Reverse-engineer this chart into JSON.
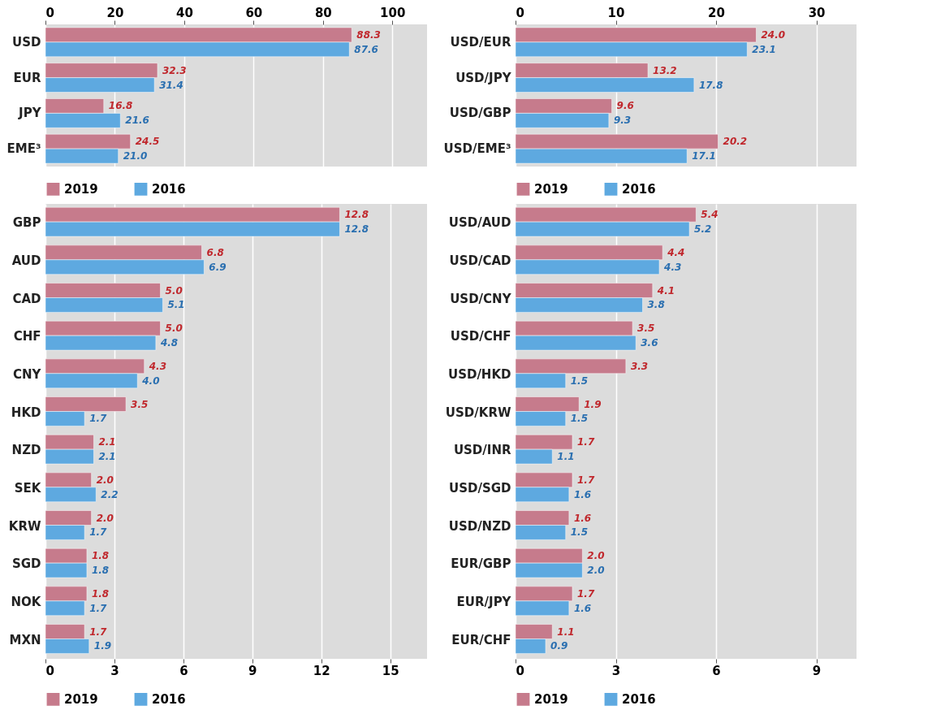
{
  "chart_data": [
    {
      "type": "bar",
      "orientation": "horizontal",
      "categories": [
        "USD",
        "EUR",
        "JPY",
        "EME³"
      ],
      "series": [
        {
          "name": "2019",
          "color": "#c67b8c",
          "values": [
            88.3,
            32.3,
            16.8,
            24.5
          ],
          "value_labels": [
            "88.3",
            "32.3",
            "16.8",
            "24.5"
          ]
        },
        {
          "name": "2016",
          "color": "#5ea9e0",
          "values": [
            87.6,
            31.4,
            21.6,
            21.0
          ],
          "value_labels": [
            "87.6",
            "31.4",
            "21.6",
            "21.0"
          ]
        }
      ],
      "xlim": [
        0,
        110
      ],
      "xticks": [
        0,
        20,
        40,
        60,
        80,
        100
      ],
      "grid": "x",
      "legend": "bottom"
    },
    {
      "type": "bar",
      "orientation": "horizontal",
      "categories": [
        "USD/EUR",
        "USD/JPY",
        "USD/GBP",
        "USD/EME³"
      ],
      "series": [
        {
          "name": "2019",
          "color": "#c67b8c",
          "values": [
            24.0,
            13.2,
            9.6,
            20.2
          ],
          "value_labels": [
            "24.0",
            "13.2",
            "9.6",
            "20.2"
          ]
        },
        {
          "name": "2016",
          "color": "#5ea9e0",
          "values": [
            23.1,
            17.8,
            9.3,
            17.1
          ],
          "value_labels": [
            "23.1",
            "17.8",
            "9.3",
            "17.1"
          ]
        }
      ],
      "xlim": [
        0,
        34
      ],
      "xticks": [
        0,
        10,
        20,
        30
      ],
      "grid": "x",
      "legend": "bottom"
    },
    {
      "type": "bar",
      "orientation": "horizontal",
      "categories": [
        "GBP",
        "AUD",
        "CAD",
        "CHF",
        "CNY",
        "HKD",
        "NZD",
        "SEK",
        "KRW",
        "SGD",
        "NOK",
        "MXN"
      ],
      "series": [
        {
          "name": "2019",
          "color": "#c67b8c",
          "values": [
            12.8,
            6.8,
            5.0,
            5.0,
            4.3,
            3.5,
            2.1,
            2.0,
            2.0,
            1.8,
            1.8,
            1.7
          ],
          "value_labels": [
            "12.8",
            "6.8",
            "5.0",
            "5.0",
            "4.3",
            "3.5",
            "2.1",
            "2.0",
            "2.0",
            "1.8",
            "1.8",
            "1.7"
          ]
        },
        {
          "name": "2016",
          "color": "#5ea9e0",
          "values": [
            12.8,
            6.9,
            5.1,
            4.8,
            4.0,
            1.7,
            2.1,
            2.2,
            1.7,
            1.8,
            1.7,
            1.9
          ],
          "value_labels": [
            "12.8",
            "6.9",
            "5.1",
            "4.8",
            "4.0",
            "1.7",
            "2.1",
            "2.2",
            "1.7",
            "1.8",
            "1.7",
            "1.9"
          ]
        }
      ],
      "xlim": [
        0,
        16.6
      ],
      "xticks": [
        0,
        3,
        6,
        9,
        12,
        15
      ],
      "grid": "x",
      "legend": "bottom"
    },
    {
      "type": "bar",
      "orientation": "horizontal",
      "categories": [
        "USD/AUD",
        "USD/CAD",
        "USD/CNY",
        "USD/CHF",
        "USD/HKD",
        "USD/KRW",
        "USD/INR",
        "USD/SGD",
        "USD/NZD",
        "EUR/GBP",
        "EUR/JPY",
        "EUR/CHF"
      ],
      "series": [
        {
          "name": "2019",
          "color": "#c67b8c",
          "values": [
            5.4,
            4.4,
            4.1,
            3.5,
            3.3,
            1.9,
            1.7,
            1.7,
            1.6,
            2.0,
            1.7,
            1.1
          ],
          "value_labels": [
            "5.4",
            "4.4",
            "4.1",
            "3.5",
            "3.3",
            "1.9",
            "1.7",
            "1.7",
            "1.6",
            "2.0",
            "1.7",
            "1.1"
          ]
        },
        {
          "name": "2016",
          "color": "#5ea9e0",
          "values": [
            5.2,
            4.3,
            3.8,
            3.6,
            1.5,
            1.5,
            1.1,
            1.6,
            1.5,
            2.0,
            1.6,
            0.9
          ],
          "value_labels": [
            "5.2",
            "4.3",
            "3.8",
            "3.6",
            "1.5",
            "1.5",
            "1.1",
            "1.6",
            "1.5",
            "2.0",
            "1.6",
            "0.9"
          ]
        }
      ],
      "xlim": [
        0,
        10.2
      ],
      "xticks": [
        0,
        3,
        6,
        9
      ],
      "grid": "x",
      "legend": "bottom"
    }
  ]
}
